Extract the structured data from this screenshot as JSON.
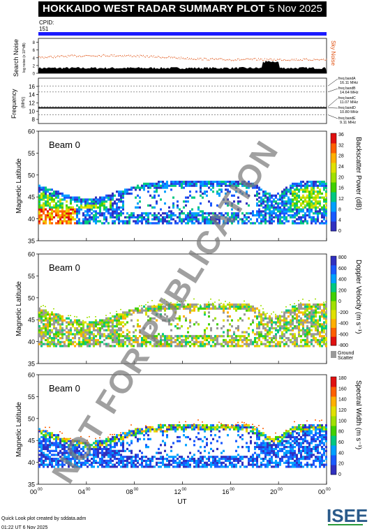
{
  "header": {
    "title": "HOKKAIDO WEST RADAR SUMMARY PLOT",
    "date": "5 Nov 2025"
  },
  "cpid": {
    "label": "CPID:",
    "value": "151"
  },
  "noise_panel": {
    "ylabel": "Search Noise",
    "ylabel_sub": "log noise (x 10^dB)",
    "right_label": "Sky Noise",
    "yticks": [
      "0",
      "2",
      "4",
      "6",
      "8"
    ]
  },
  "freq_panel": {
    "ylabel": "Frequency",
    "ylabel_sub": "(MHz)",
    "yticks": [
      "8",
      "10",
      "12",
      "14",
      "16"
    ],
    "bands": [
      {
        "name": "freq bandA",
        "value": "16.11 MHz"
      },
      {
        "name": "freq bandB",
        "value": "14.64 MHz"
      },
      {
        "name": "freq bandC",
        "value": "11.07 MHz"
      },
      {
        "name": "freq bandD",
        "value": "10.80 MHz"
      },
      {
        "name": "freq bandE",
        "value": "9.11 MHz"
      }
    ]
  },
  "panels": [
    {
      "beam": "Beam  0",
      "ylabel": "Magnetic Latitude",
      "cbar_label": "Backscatter Power (dB)",
      "cbar_ticks": [
        "0",
        "4",
        "8",
        "12",
        "16",
        "20",
        "24",
        "28",
        "32",
        "36"
      ]
    },
    {
      "beam": "Beam  0",
      "ylabel": "Magnetic Latitude",
      "cbar_label": "Doppler Velocity (m s⁻¹)",
      "cbar_ticks": [
        "-800",
        "-600",
        "-400",
        "-200",
        "0",
        "200",
        "400",
        "600",
        "800"
      ],
      "extra": [
        "Ground",
        "Scatter"
      ]
    },
    {
      "beam": "Beam  0",
      "ylabel": "Magnetic Latitude",
      "cbar_label": "Spectral Width (m s⁻¹)",
      "cbar_ticks": [
        "0",
        "20",
        "40",
        "60",
        "80",
        "100",
        "120",
        "140",
        "160",
        "180"
      ]
    }
  ],
  "lat_ticks": [
    "35",
    "40",
    "45",
    "50",
    "55",
    "60"
  ],
  "x_axis": {
    "label": "UT",
    "ticks": [
      "00",
      "04",
      "08",
      "12",
      "16",
      "20",
      "00"
    ],
    "tick_sup": "00"
  },
  "watermark": "NOT FOR PUBLICATION",
  "footer": {
    "line1": "Quick Look plot created by sddata.adm",
    "line2": "01:22 UT  6 Nov 2025"
  },
  "logo": {
    "text": "ISEE"
  },
  "colors": {
    "accent": "#1a1aff",
    "ground_scatter": "#999999"
  },
  "chart_data": [
    {
      "type": "line",
      "title": "Search Noise",
      "series": [
        {
          "name": "Sky Noise",
          "values": [
            5,
            5,
            5,
            5,
            5,
            5,
            5,
            5,
            5,
            5,
            5,
            5,
            4.5,
            4.5,
            4.5,
            4.5,
            4.5,
            4.5,
            4.5,
            5
          ]
        }
      ],
      "ylim": [
        0,
        9
      ]
    },
    {
      "type": "line",
      "title": "Frequency",
      "series": [
        {
          "values": [
            10.8,
            10.8,
            10.8,
            10.8,
            10.8,
            10.8,
            10.8,
            10.8,
            10.8,
            10.8
          ]
        }
      ],
      "ylim": [
        7,
        18
      ]
    },
    {
      "type": "heatmap",
      "title": "Backscatter Power (dB)",
      "xlim": [
        0,
        24
      ],
      "ylim": [
        35,
        60
      ],
      "clim": [
        0,
        36
      ]
    },
    {
      "type": "heatmap",
      "title": "Doppler Velocity (m s-1)",
      "xlim": [
        0,
        24
      ],
      "ylim": [
        35,
        60
      ],
      "clim": [
        -800,
        800
      ]
    },
    {
      "type": "heatmap",
      "title": "Spectral Width (m s-1)",
      "xlim": [
        0,
        24
      ],
      "ylim": [
        35,
        60
      ],
      "clim": [
        0,
        180
      ]
    }
  ]
}
